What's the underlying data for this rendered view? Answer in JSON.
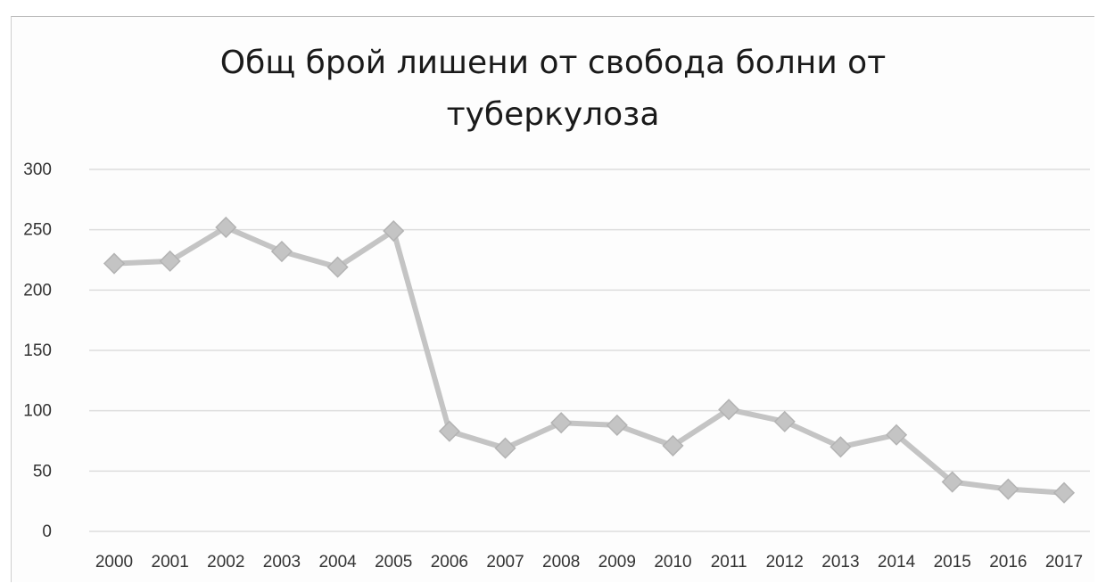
{
  "chart_data": {
    "type": "line",
    "title_lines": [
      "Общ брой лишени от свобода болни от",
      "туберкулоза"
    ],
    "categories": [
      "2000",
      "2001",
      "2002",
      "2003",
      "2004",
      "2005",
      "2006",
      "2007",
      "2008",
      "2009",
      "2010",
      "2011",
      "2012",
      "2013",
      "2014",
      "2015",
      "2016",
      "2017"
    ],
    "series": [
      {
        "values": [
          222,
          224,
          252,
          232,
          219,
          249,
          83,
          69,
          90,
          88,
          71,
          101,
          91,
          70,
          80,
          41,
          35,
          32
        ],
        "color": "#c4c4c4",
        "marker": "diamond"
      }
    ],
    "yticks": [
      0,
      50,
      100,
      150,
      200,
      250,
      300
    ],
    "ylim": [
      0,
      300
    ],
    "grid": true,
    "legend": "none"
  }
}
